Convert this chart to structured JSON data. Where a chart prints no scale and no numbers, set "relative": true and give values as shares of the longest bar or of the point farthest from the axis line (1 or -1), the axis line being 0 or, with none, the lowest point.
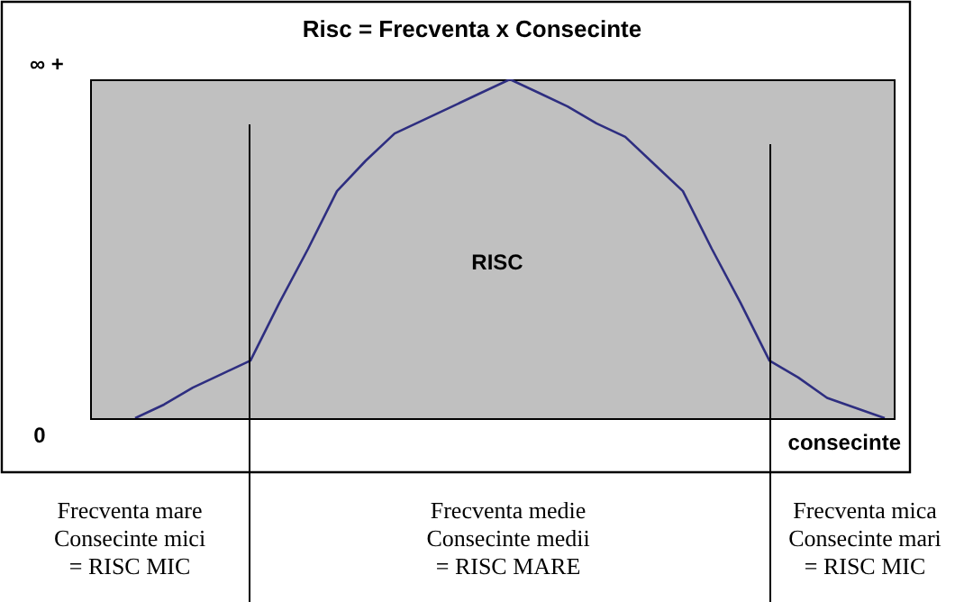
{
  "chart_data": {
    "type": "line",
    "title": "Risc = Frecventa x Consecinte",
    "xlabel": "consecinte",
    "relative": true,
    "marker": "none",
    "legend": false,
    "tick_labels": false,
    "categories": [
      null,
      null,
      null,
      null,
      null,
      null,
      null,
      null,
      null,
      null,
      null,
      null,
      null,
      null,
      null,
      null,
      null,
      null,
      null,
      null,
      null,
      null,
      null,
      null,
      null,
      null,
      null
    ],
    "series": [
      {
        "color": "#2e2e80",
        "values": [
          0,
          0.04,
          0.09,
          0.13,
          0.17,
          0.34,
          0.5,
          0.67,
          0.76,
          0.84,
          0.88,
          0.92,
          0.96,
          1,
          0.96,
          0.92,
          0.87,
          0.83,
          0.75,
          0.67,
          0.5,
          0.34,
          0.17,
          0.12,
          0.06,
          0.03,
          0
        ]
      }
    ],
    "annotations": [
      "∞ +",
      "0",
      "RISC",
      "Frecventa mare\nConsecinte mici\n= RISC MIC",
      "Frecventa medie\nConsecinte medii\n= RISC MARE",
      "Frecventa mica\nConsecinte mari\n= RISC MIC"
    ]
  }
}
